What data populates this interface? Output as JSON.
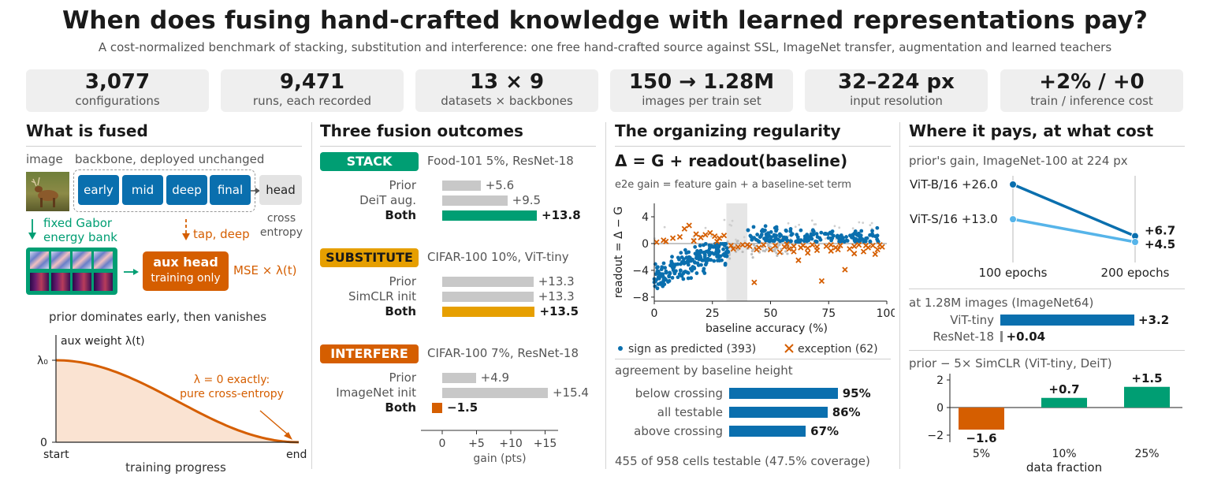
{
  "header": {
    "title": "When does fusing hand-crafted knowledge with learned representations pay?",
    "subtitle": "A cost-normalized benchmark of stacking, substitution and interference: one free hand-crafted source against SSL, ImageNet transfer, augmentation and learned teachers"
  },
  "stats": [
    {
      "value": "3,077",
      "label": "configurations"
    },
    {
      "value": "9,471",
      "label": "runs, each recorded"
    },
    {
      "value": "13 × 9",
      "label": "datasets × backbones"
    },
    {
      "value": "150 → 1.28M",
      "label": "images per train set"
    },
    {
      "value": "32–224 px",
      "label": "input resolution"
    },
    {
      "value": "+2% / +0",
      "label": "train / inference cost"
    }
  ],
  "panel1": {
    "heading": "What is fused",
    "image_label": "image",
    "backbone_label": "backbone, deployed unchanged",
    "blocks": [
      "early",
      "mid",
      "deep",
      "final"
    ],
    "head_label": "head",
    "cross_entropy": "cross\nentropy",
    "gabor_label": "fixed Gabor\nenergy bank",
    "tap_label": "tap, deep",
    "aux_head": "aux head",
    "training_only": "training only",
    "mse_label": "MSE × λ(t)",
    "prior_note": "prior dominates early, then vanishes",
    "curve": {
      "ylabel": "aux weight λ(t)",
      "y_ticks": [
        "λ₀",
        "0"
      ],
      "x_ticks": [
        "start",
        "end"
      ],
      "xlabel": "training progress",
      "annotation": "λ = 0 exactly:\npure cross-entropy"
    },
    "colors": {
      "blue": "#0a6fae",
      "green": "#009e73",
      "orange": "#d55e00"
    }
  },
  "panel2": {
    "heading": "Three fusion outcomes",
    "groups": [
      {
        "tag": "STACK",
        "tag_color": "#009e73",
        "tag_text_color": "#ffffff",
        "context": "Food-101 5%, ResNet-18",
        "rows": [
          {
            "label": "Prior",
            "value": 5.6,
            "text": "+5.6"
          },
          {
            "label": "DeiT aug.",
            "value": 9.5,
            "text": "+9.5"
          },
          {
            "label": "Both",
            "value": 13.8,
            "text": "+13.8"
          }
        ]
      },
      {
        "tag": "SUBSTITUTE",
        "tag_color": "#e69f00",
        "tag_text_color": "#1a1a1a",
        "context": "CIFAR-100 10%, ViT-tiny",
        "rows": [
          {
            "label": "Prior",
            "value": 13.3,
            "text": "+13.3"
          },
          {
            "label": "SimCLR init",
            "value": 13.3,
            "text": "+13.3"
          },
          {
            "label": "Both",
            "value": 13.5,
            "text": "+13.5"
          }
        ]
      },
      {
        "tag": "INTERFERE",
        "tag_color": "#d55e00",
        "tag_text_color": "#ffffff",
        "context": "CIFAR-100 7%, ResNet-18",
        "rows": [
          {
            "label": "Prior",
            "value": 4.9,
            "text": "+4.9"
          },
          {
            "label": "ImageNet init",
            "value": 15.4,
            "text": "+15.4"
          },
          {
            "label": "Both",
            "value": -1.5,
            "text": "−1.5"
          }
        ]
      }
    ],
    "axis_ticks": [
      "0",
      "+5",
      "+10",
      "+15"
    ],
    "xlabel": "gain (pts)"
  },
  "panel3": {
    "heading": "The organizing regularity",
    "equation": "Δ  =  G  +  readout(baseline)",
    "equation_caption": "e2e gain = feature gain + a baseline-set term",
    "scatter": {
      "ylabel": "readout = Δ − G",
      "xlabel": "baseline accuracy (%)",
      "x_ticks": [
        "0",
        "25",
        "50",
        "75",
        "100"
      ],
      "y_ticks": [
        "4",
        "0",
        "−4",
        "−8"
      ],
      "xlim": [
        0,
        100
      ],
      "ylim": [
        -8.6,
        6
      ],
      "shaded_band": [
        31,
        40
      ],
      "legend_predicted": "sign as predicted (393)",
      "legend_exception": "exception (62)"
    },
    "agreement_title": "agreement by baseline height",
    "agreement": [
      {
        "label": "below crossing",
        "value": 95,
        "text": "95%"
      },
      {
        "label": "all testable",
        "value": 86,
        "text": "86%"
      },
      {
        "label": "above crossing",
        "value": 67,
        "text": "67%"
      }
    ],
    "coverage": "455 of 958 cells testable (47.5% coverage)"
  },
  "panel4": {
    "heading": "Where it pays, at what cost",
    "gain_title": "prior's gain, ImageNet-100 at 224 px",
    "vit_b": {
      "label": "ViT-B/16  +26.0",
      "start": 26.0,
      "end": 6.7,
      "end_text": "+6.7",
      "color": "#0a6fae"
    },
    "vit_s": {
      "label": "ViT-S/16  +13.0",
      "start": 13.0,
      "end": 4.5,
      "end_text": "+4.5",
      "color": "#56b4e9"
    },
    "epoch_labels": [
      "100 epochs",
      "200 epochs"
    ],
    "scale_title": "at 1.28M images (ImageNet64)",
    "scale_rows": [
      {
        "label": "ViT-tiny",
        "value": 3.2,
        "text": "+3.2"
      },
      {
        "label": "ResNet-18",
        "value": 0.04,
        "text": "+0.04"
      }
    ],
    "simclr_title": "prior − 5× SimCLR (ViT-tiny, DeiT)",
    "simclr": {
      "categories": [
        "5%",
        "10%",
        "25%"
      ],
      "values": [
        -1.6,
        0.7,
        1.5
      ],
      "texts": [
        "−1.6",
        "+0.7",
        "+1.5"
      ],
      "colors": [
        "#d55e00",
        "#009e73",
        "#009e73"
      ],
      "y_ticks": [
        "2",
        "0",
        "−2"
      ],
      "xlabel": "data fraction"
    }
  }
}
